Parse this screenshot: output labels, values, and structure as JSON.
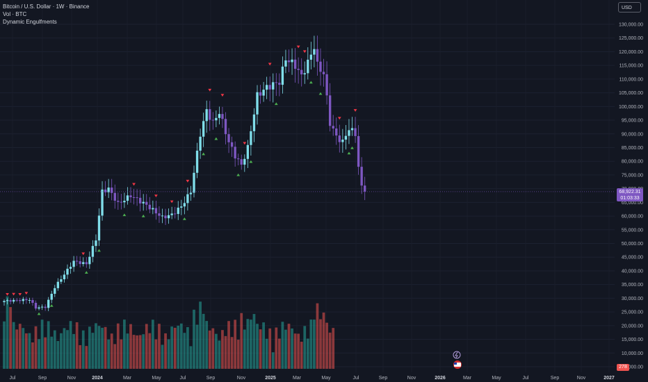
{
  "header": {
    "title": "Bitcoin / U.S. Dollar · 1W · Binance",
    "indicators": [
      "Vol · BTC",
      "Dynamic Engulfments"
    ],
    "currency": "USD"
  },
  "price_axis": {
    "labels": [
      "130,000.00",
      "125,000.00",
      "120,000.00",
      "115,000.00",
      "110,000.00",
      "105,000.00",
      "100,000.00",
      "95,000.00",
      "90,000.00",
      "85,000.00",
      "80,000.00",
      "75,000.00",
      "70,000.00",
      "65,000.00",
      "60,000.00",
      "55,000.00",
      "50,000.00",
      "45,000.00",
      "40,000.00",
      "35,000.00",
      "30,000.00",
      "25,000.00",
      "20,000.00",
      "15,000.00",
      "10,000.00",
      "5,000.00"
    ],
    "last_price": "68,922.31",
    "countdown": "01:03:33",
    "volume_tag": "278"
  },
  "time_axis": {
    "labels": [
      "Jul",
      "Sep",
      "Nov",
      "2024",
      "Mar",
      "May",
      "Jul",
      "Sep",
      "Nov",
      "2025",
      "Mar",
      "May",
      "Jul",
      "Sep",
      "Nov",
      "2026",
      "Mar",
      "May",
      "Jul",
      "Sep",
      "Nov",
      "2027"
    ]
  },
  "colors": {
    "background": "#131722",
    "bull": "#80deea",
    "bear": "#7e57c2",
    "vol_bull": "#26a69a",
    "vol_bear": "#ef5350",
    "signal_up": "#4caf50",
    "signal_down": "#f23645"
  },
  "chart_data": {
    "type": "candlestick",
    "interval": "1W",
    "y_range": [
      0,
      132000
    ],
    "anchors": [
      {
        "t": 0,
        "p": 29000
      },
      {
        "t": 8,
        "p": 29500
      },
      {
        "t": 10,
        "p": 26500
      },
      {
        "t": 13,
        "p": 26800
      },
      {
        "t": 16,
        "p": 34000
      },
      {
        "t": 22,
        "p": 43500
      },
      {
        "t": 26,
        "p": 42500
      },
      {
        "t": 29,
        "p": 51500
      },
      {
        "t": 31,
        "p": 69000
      },
      {
        "t": 33,
        "p": 70000
      },
      {
        "t": 36,
        "p": 64500
      },
      {
        "t": 40,
        "p": 67500
      },
      {
        "t": 45,
        "p": 64000
      },
      {
        "t": 50,
        "p": 59500
      },
      {
        "t": 53,
        "p": 60500
      },
      {
        "t": 56,
        "p": 63500
      },
      {
        "t": 59,
        "p": 69000
      },
      {
        "t": 62,
        "p": 90000
      },
      {
        "t": 64,
        "p": 98500
      },
      {
        "t": 66,
        "p": 94000
      },
      {
        "t": 68,
        "p": 98000
      },
      {
        "t": 71,
        "p": 87000
      },
      {
        "t": 73,
        "p": 82000
      },
      {
        "t": 75,
        "p": 78500
      },
      {
        "t": 77,
        "p": 85000
      },
      {
        "t": 80,
        "p": 104000
      },
      {
        "t": 83,
        "p": 107000
      },
      {
        "t": 87,
        "p": 109000
      },
      {
        "t": 89,
        "p": 117500
      },
      {
        "t": 92,
        "p": 115000
      },
      {
        "t": 94,
        "p": 111000
      },
      {
        "t": 96,
        "p": 116000
      },
      {
        "t": 98,
        "p": 122000
      },
      {
        "t": 99,
        "p": 115000
      },
      {
        "t": 101,
        "p": 112000
      },
      {
        "t": 103,
        "p": 94000
      },
      {
        "t": 105,
        "p": 89000
      },
      {
        "t": 107,
        "p": 87000
      },
      {
        "t": 109,
        "p": 92000
      },
      {
        "t": 111,
        "p": 90000
      },
      {
        "t": 112,
        "p": 78000
      },
      {
        "t": 113,
        "p": 70500
      },
      {
        "t": 114,
        "p": 68922
      }
    ],
    "volume_range": [
      0,
      40000
    ],
    "last_volume": 278,
    "signals_down_weeks": [
      1,
      3,
      5,
      7,
      25,
      41,
      48,
      53,
      58,
      65,
      69,
      76,
      84,
      93,
      95,
      106,
      111
    ],
    "signals_up_weeks": [
      11,
      15,
      26,
      30,
      38,
      44,
      57,
      63,
      67,
      74,
      78,
      86,
      97,
      100,
      109,
      110
    ]
  }
}
